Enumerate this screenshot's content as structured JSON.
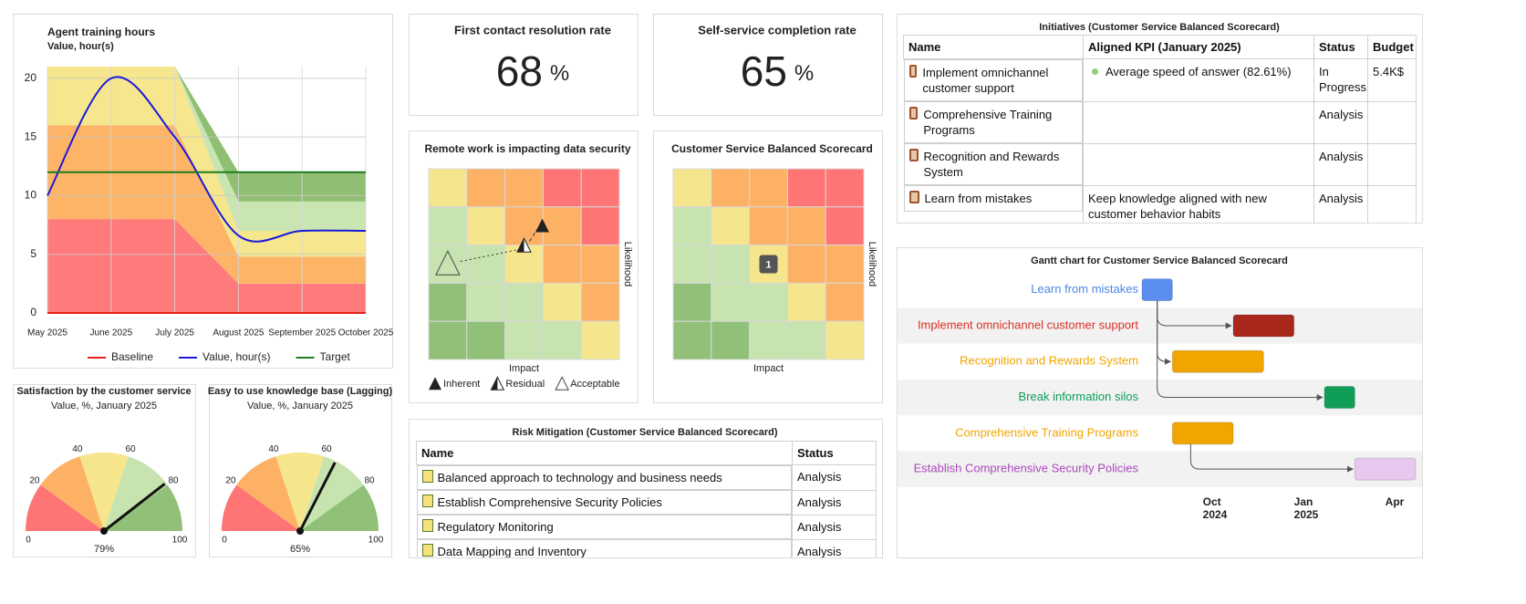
{
  "chart_data": [
    {
      "type": "area-line",
      "title": "Agent training hours",
      "subtitle": "Value, hour(s)",
      "categories": [
        "May 2025",
        "June 2025",
        "July 2025",
        "August 2025",
        "September 2025",
        "October 2025"
      ],
      "bands": [
        {
          "color": "#ff7b7b",
          "values": [
            8,
            8,
            8,
            2.5,
            2.5,
            2.5
          ]
        },
        {
          "color": "#fdb466",
          "values": [
            8,
            8,
            8,
            2.3,
            2.3,
            2.3
          ]
        },
        {
          "color": "#f6e68e",
          "values": [
            5,
            5,
            5,
            2.2,
            2.2,
            2.2
          ]
        },
        {
          "color": "#c9e5b2",
          "values": [
            0,
            0,
            0,
            2.5,
            2.5,
            2.5
          ]
        },
        {
          "color": "#90bf74",
          "values": [
            0,
            0,
            0,
            2.5,
            2.5,
            2.5
          ]
        }
      ],
      "series": [
        {
          "name": "Baseline",
          "color": "#e8201c",
          "values": [
            0,
            0,
            0,
            0,
            0,
            0
          ]
        },
        {
          "name": "Value, hour(s)",
          "color": "#1a1adb",
          "values": [
            10,
            20,
            15,
            6.6,
            7,
            7
          ],
          "smooth": true
        },
        {
          "name": "Target",
          "color": "#1e7d1e",
          "values": [
            12,
            12,
            12,
            12,
            12,
            12
          ]
        }
      ],
      "ylim": [
        0,
        21
      ],
      "yticks": [
        0,
        5,
        10,
        15,
        20
      ],
      "grid": true,
      "legend": "bottom"
    },
    {
      "type": "risk-matrix",
      "title": "Remote work is impacting data security",
      "xlabel": "Impact",
      "ylabel": "Likelihood",
      "cell_colors": [
        [
          "#f5e68d",
          "#fdb165",
          "#fdb165",
          "#ff7474",
          "#ff7474"
        ],
        [
          "#c6e3b0",
          "#f5e68d",
          "#fdb165",
          "#fdb165",
          "#ff7474"
        ],
        [
          "#c6e3b0",
          "#c6e3b0",
          "#f5e68d",
          "#fdb165",
          "#fdb165"
        ],
        [
          "#91c078",
          "#c6e3b0",
          "#c6e3b0",
          "#f5e68d",
          "#fdb165"
        ],
        [
          "#91c078",
          "#91c078",
          "#c6e3b0",
          "#c6e3b0",
          "#f5e68d"
        ]
      ],
      "markers": [
        {
          "name": "Inherent",
          "kind": "inherent",
          "impact": 3,
          "likelihood": 4
        },
        {
          "name": "Residual",
          "kind": "residual",
          "impact": 3,
          "likelihood": 3
        },
        {
          "name": "Acceptable",
          "kind": "acceptable",
          "impact": 1,
          "likelihood": 3
        }
      ],
      "legend": "bottom"
    },
    {
      "type": "risk-matrix",
      "title": "Customer Service Balanced Scorecard",
      "xlabel": "Impact",
      "ylabel": "Likelihood",
      "cell_colors": [
        [
          "#f5e68d",
          "#fdb165",
          "#fdb165",
          "#ff7474",
          "#ff7474"
        ],
        [
          "#c6e3b0",
          "#f5e68d",
          "#fdb165",
          "#fdb165",
          "#ff7474"
        ],
        [
          "#c6e3b0",
          "#c6e3b0",
          "#f5e68d",
          "#fdb165",
          "#fdb165"
        ],
        [
          "#91c078",
          "#c6e3b0",
          "#c6e3b0",
          "#f5e68d",
          "#fdb165"
        ],
        [
          "#91c078",
          "#91c078",
          "#c6e3b0",
          "#c6e3b0",
          "#f5e68d"
        ]
      ],
      "badges": [
        {
          "label": "1",
          "impact": 3,
          "likelihood": 3
        }
      ]
    },
    {
      "type": "gauge",
      "title": "Satisfaction by the customer service",
      "subtitle": "Value, %, January 2025",
      "value": 79,
      "value_label": "79%",
      "ylim": [
        0,
        100
      ],
      "yticks": [
        0,
        20,
        40,
        60,
        80,
        100
      ],
      "band_colors": [
        "#ff7474",
        "#fdb165",
        "#f5e68d",
        "#c6e3b0",
        "#91c078"
      ]
    },
    {
      "type": "gauge",
      "title": "Easy to use knowledge base (Lagging)",
      "subtitle": "Value, %, January 2025",
      "value": 65,
      "value_label": "65%",
      "ylim": [
        0,
        100
      ],
      "yticks": [
        0,
        20,
        40,
        60,
        80,
        100
      ],
      "band_colors": [
        "#ff7474",
        "#fdb165",
        "#f5e68d",
        "#c6e3b0",
        "#91c078"
      ]
    },
    {
      "type": "gantt",
      "title": "Gantt chart for Customer Service Balanced Scorecard",
      "xlim": [
        "2024-08",
        "2025-05"
      ],
      "xticks": [
        {
          "value": "2024-10",
          "label": "Oct 2024"
        },
        {
          "value": "2025-01",
          "label": "Jan 2025"
        },
        {
          "value": "2025-04",
          "label": "Apr"
        }
      ],
      "tasks": [
        {
          "name": "Learn from mistakes",
          "color": "#4a86e8",
          "bar_color": "#5b8def",
          "start": "2024-08",
          "end": "2024-09"
        },
        {
          "name": "Implement omnichannel customer support",
          "color": "#d93025",
          "bar_color": "#a8281c",
          "start": "2024-11",
          "end": "2025-01"
        },
        {
          "name": "Recognition and Rewards System",
          "color": "#f0a500",
          "bar_color": "#f0a500",
          "start": "2024-09",
          "end": "2024-12"
        },
        {
          "name": "Break information silos",
          "color": "#0f9d58",
          "bar_color": "#0f9d58",
          "start": "2025-02",
          "end": "2025-03"
        },
        {
          "name": "Comprehensive Training Programs",
          "color": "#f0a500",
          "bar_color": "#f0a500",
          "start": "2024-09",
          "end": "2024-11"
        },
        {
          "name": "Establish Comprehensive Security Policies",
          "color": "#ab47bc",
          "bar_color": "#e6c8ee",
          "start": "2025-03",
          "end": "2025-05"
        }
      ],
      "dependencies": [
        [
          0,
          1
        ],
        [
          0,
          2
        ],
        [
          0,
          3
        ],
        [
          4,
          5
        ]
      ]
    }
  ],
  "kpis": [
    {
      "title": "First contact resolution rate",
      "value": 68,
      "unit": "%"
    },
    {
      "title": "Self-service completion rate",
      "value": 65,
      "unit": "%"
    }
  ],
  "initiatives": {
    "title": "Initiatives (Customer Service Balanced Scorecard)",
    "columns": [
      "Name",
      "Aligned KPI (January 2025)",
      "Status",
      "Budget"
    ],
    "rows": [
      [
        "Implement omnichannel customer support",
        "Average speed of answer (82.61%)",
        "In Progress",
        "5.4K$"
      ],
      [
        "Comprehensive Training Programs",
        null,
        "Analysis",
        null
      ],
      [
        "Recognition and Rewards System",
        null,
        "Analysis",
        null
      ],
      [
        "Learn from mistakes",
        "Keep knowledge aligned with new customer behavior habits",
        "Analysis",
        null
      ]
    ]
  },
  "risk_mitigation": {
    "title": "Risk Mitigation (Customer Service Balanced Scorecard)",
    "columns": [
      "Name",
      "Status"
    ],
    "rows": [
      [
        "Balanced approach to technology and business needs",
        "Analysis"
      ],
      [
        "Establish Comprehensive Security Policies",
        "Analysis"
      ],
      [
        "Regulatory Monitoring",
        "Analysis"
      ],
      [
        "Data Mapping and Inventory",
        "Analysis"
      ]
    ]
  }
}
